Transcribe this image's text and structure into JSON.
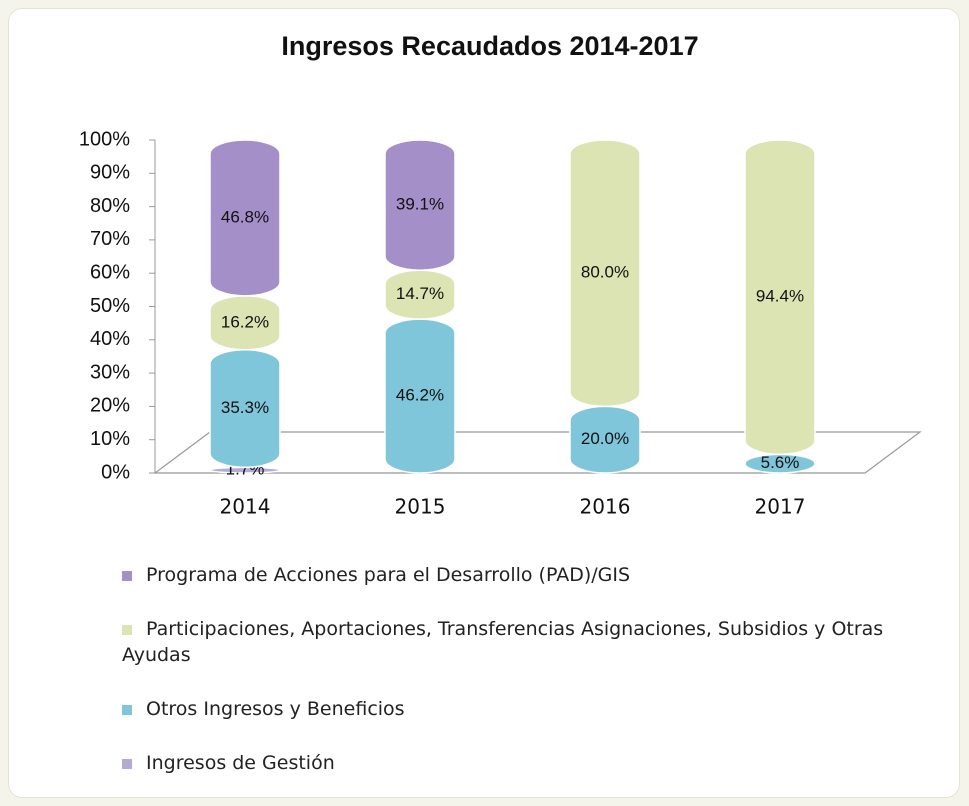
{
  "chart_data": {
    "type": "bar",
    "stacked": true,
    "title": "Ingresos Recaudados 2014-2017",
    "categories": [
      "2014",
      "2015",
      "2016",
      "2017"
    ],
    "series": [
      {
        "name": "Programa de Acciones para el Desarrollo (PAD)/GIS",
        "color": "#a58fc8",
        "values": [
          46.8,
          39.1,
          null,
          null
        ],
        "value_labels": [
          "46.8%",
          "39.1%",
          null,
          null
        ]
      },
      {
        "name": "Participaciones, Aportaciones, Transferencias Asignaciones, Subsidios y Otras Ayudas",
        "color": "#dbe4b2",
        "values": [
          16.2,
          14.7,
          80.0,
          94.4
        ],
        "value_labels": [
          "16.2%",
          "14.7%",
          "80.0%",
          "94.4%"
        ]
      },
      {
        "name": "Otros Ingresos y Beneficios",
        "color": "#7fc6da",
        "values": [
          35.3,
          46.2,
          20.0,
          5.6
        ],
        "value_labels": [
          "35.3%",
          "46.2%",
          "20.0%",
          "5.6%"
        ]
      },
      {
        "name": "Ingresos de Gestión",
        "color": "#b5aad4",
        "values": [
          1.7,
          null,
          null,
          null
        ],
        "value_labels": [
          "1.7%",
          null,
          null,
          null
        ]
      }
    ],
    "ylim": [
      0,
      100
    ],
    "yticks": [
      {
        "value": 0,
        "label": "0%"
      },
      {
        "value": 10,
        "label": "10%"
      },
      {
        "value": 20,
        "label": "20%"
      },
      {
        "value": 30,
        "label": "30%"
      },
      {
        "value": 40,
        "label": "40%"
      },
      {
        "value": 50,
        "label": "50%"
      },
      {
        "value": 60,
        "label": "60%"
      },
      {
        "value": 70,
        "label": "70%"
      },
      {
        "value": 80,
        "label": "80%"
      },
      {
        "value": 90,
        "label": "90%"
      },
      {
        "value": 100,
        "label": "100%"
      }
    ]
  }
}
